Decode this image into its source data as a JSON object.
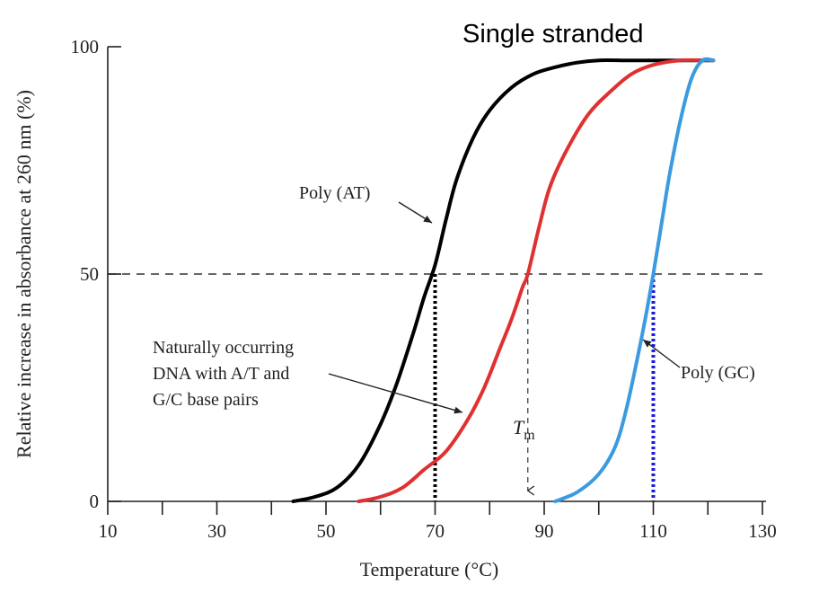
{
  "chart_data": {
    "type": "line",
    "title": "Single stranded",
    "xlabel": "Temperature (°C)",
    "ylabel": "Relative increase in absorbance at 260 nm (%)",
    "xlim": [
      10,
      130
    ],
    "ylim": [
      0,
      100
    ],
    "x_ticks": [
      10,
      20,
      30,
      40,
      50,
      60,
      70,
      80,
      90,
      100,
      110,
      120,
      130
    ],
    "x_tick_labels": [
      "10",
      "30",
      "50",
      "70",
      "90",
      "110",
      "130"
    ],
    "x_tick_label_values": [
      10,
      30,
      50,
      70,
      90,
      110,
      130
    ],
    "y_ticks": [
      0,
      50,
      100
    ],
    "y_tick_labels": [
      "0",
      "50",
      "100"
    ],
    "grid": false,
    "series": [
      {
        "name": "Poly (AT)",
        "color": "#000000",
        "x": [
          44,
          48,
          52,
          56,
          60,
          63,
          66,
          68,
          70,
          72,
          74,
          77,
          80,
          84,
          88,
          92,
          96,
          100,
          105,
          110,
          115,
          121
        ],
        "y": [
          0,
          1,
          3,
          8,
          17,
          26,
          37,
          45,
          52,
          62,
          71,
          80,
          86,
          91,
          94,
          95.5,
          96.5,
          97,
          97,
          97,
          97,
          97
        ]
      },
      {
        "name": "Naturally occurring DNA with A/T and G/C base pairs",
        "color": "#e03030",
        "x": [
          56,
          60,
          64,
          68,
          72,
          76,
          79,
          82,
          84,
          86,
          87,
          89,
          91,
          94,
          98,
          102,
          106,
          110,
          115,
          121
        ],
        "y": [
          0,
          1,
          3,
          7,
          11,
          18,
          25,
          34,
          40,
          47,
          50,
          60,
          69,
          77,
          85,
          90,
          94,
          96,
          97,
          97
        ]
      },
      {
        "name": "Poly (GC)",
        "color": "#3a9be0",
        "x": [
          92,
          96,
          100,
          103,
          105,
          107,
          108.5,
          110,
          111.5,
          113,
          115,
          117,
          119,
          121
        ],
        "y": [
          0,
          2,
          6,
          12,
          20,
          31,
          40,
          50,
          61,
          72,
          84,
          93,
          97,
          97
        ]
      }
    ],
    "reference_lines": {
      "half_melt_y": 50,
      "tm_x": 87,
      "poly_at_half_x": 70,
      "poly_gc_half_x": 110,
      "poly_gc_drop_color": "#1a1ae0"
    },
    "annotations": {
      "poly_at_label": "Poly (AT)",
      "natural_dna_label_lines": [
        "Naturally occurring",
        "DNA with A/T and",
        "G/C base pairs"
      ],
      "poly_gc_label": "Poly (GC)",
      "tm_symbol": "T",
      "tm_subscript": "m"
    }
  }
}
